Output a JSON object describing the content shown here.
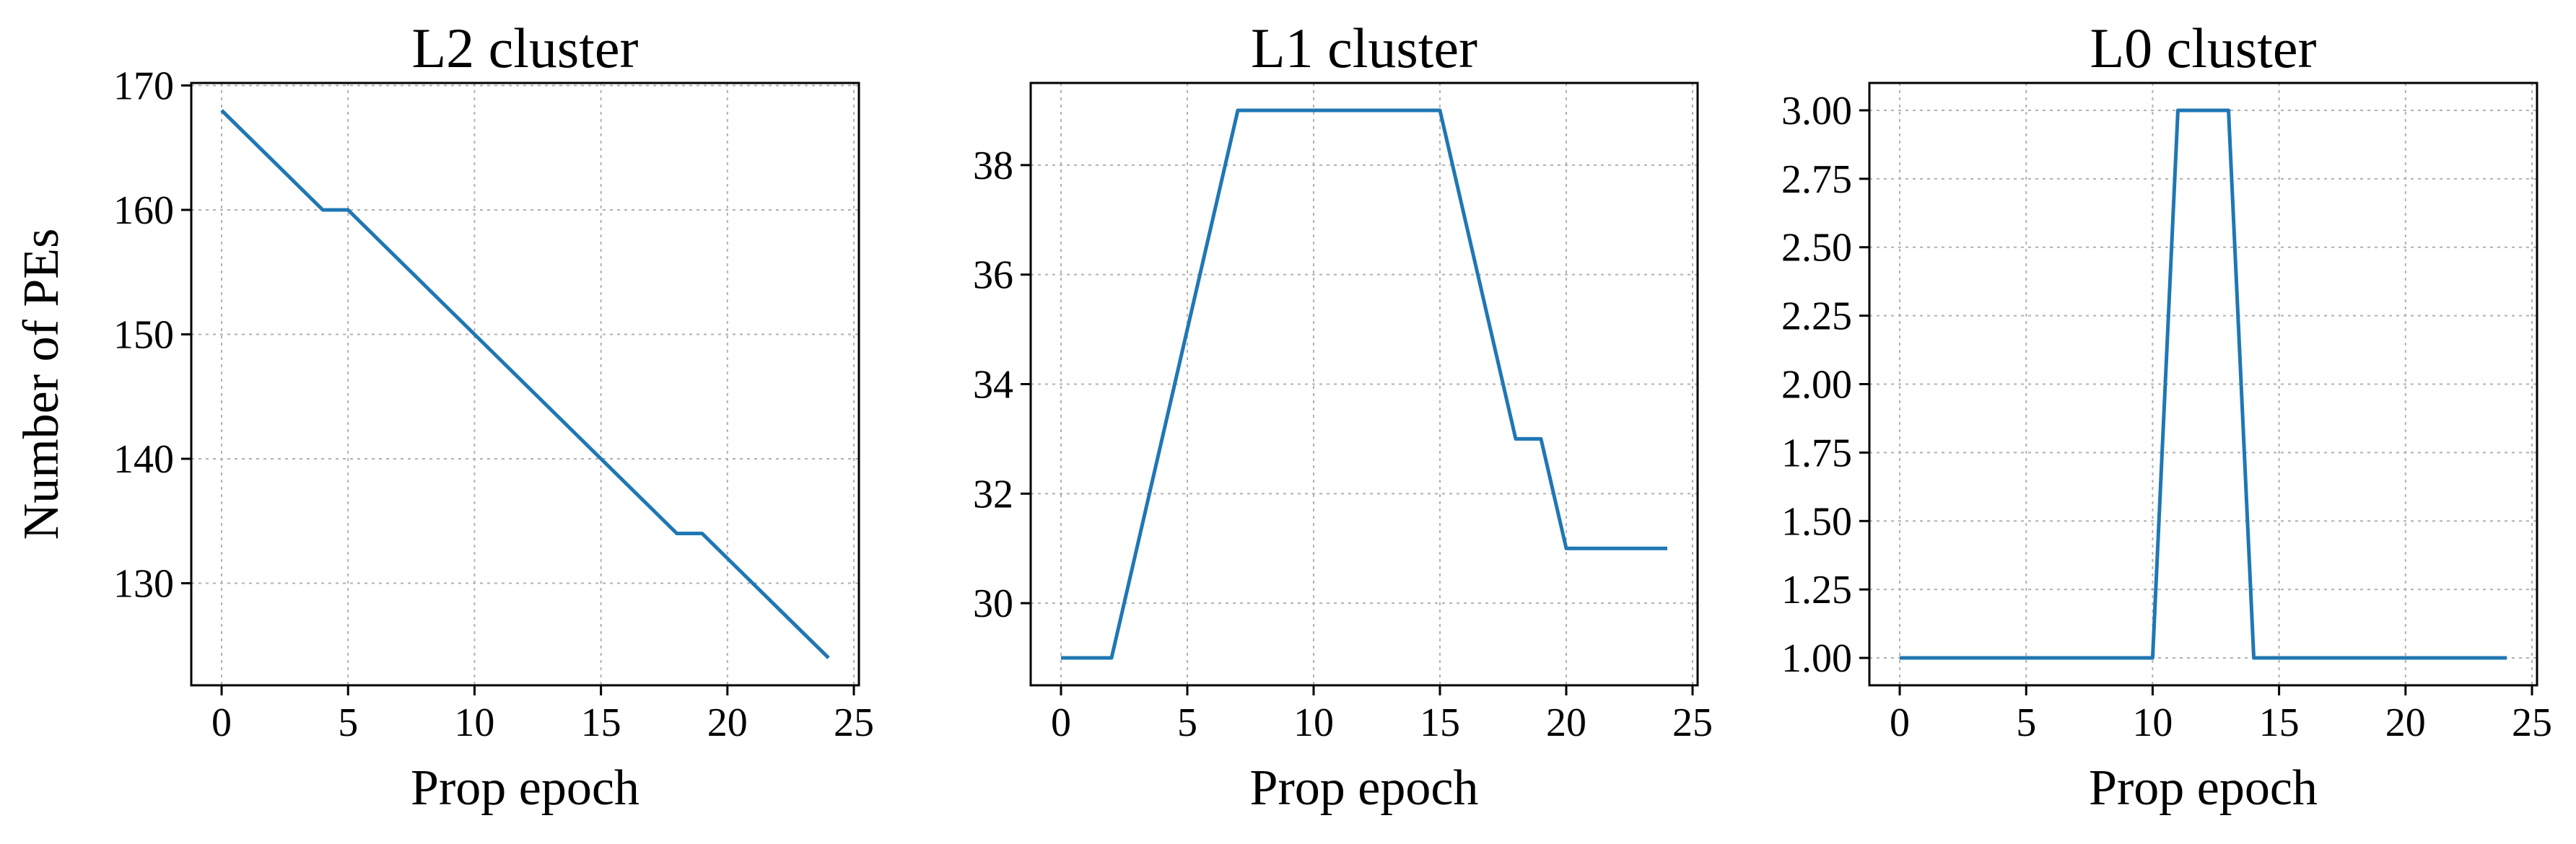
{
  "chart_data": [
    {
      "type": "line",
      "title": "L2 cluster",
      "xlabel": "Prop epoch",
      "ylabel": "Number of PEs",
      "xlim": [
        -1.2,
        25.2
      ],
      "ylim": [
        121.8,
        170.2
      ],
      "xticks": [
        0,
        5,
        10,
        15,
        20,
        25
      ],
      "yticks": [
        130,
        140,
        150,
        160,
        170
      ],
      "ytick_labels": [
        "130",
        "140",
        "150",
        "160",
        "170"
      ],
      "grid": true,
      "color": "#1f77b4",
      "x": [
        0,
        1,
        2,
        3,
        4,
        5,
        6,
        7,
        8,
        9,
        10,
        11,
        12,
        13,
        14,
        15,
        16,
        17,
        18,
        19,
        20,
        21,
        22,
        23,
        24
      ],
      "values": [
        168,
        166,
        164,
        162,
        160,
        160,
        158,
        156,
        154,
        152,
        150,
        148,
        146,
        144,
        142,
        140,
        138,
        136,
        134,
        134,
        132,
        130,
        128,
        126,
        124
      ]
    },
    {
      "type": "line",
      "title": "L1 cluster",
      "xlabel": "Prop epoch",
      "ylabel": "",
      "xlim": [
        -1.2,
        25.2
      ],
      "ylim": [
        28.5,
        39.5
      ],
      "xticks": [
        0,
        5,
        10,
        15,
        20,
        25
      ],
      "yticks": [
        30,
        32,
        34,
        36,
        38
      ],
      "ytick_labels": [
        "30",
        "32",
        "34",
        "36",
        "38"
      ],
      "grid": true,
      "color": "#1f77b4",
      "x": [
        0,
        1,
        2,
        3,
        4,
        5,
        6,
        7,
        8,
        9,
        10,
        11,
        12,
        13,
        14,
        15,
        16,
        17,
        18,
        19,
        20,
        21,
        22,
        23,
        24
      ],
      "values": [
        29,
        29,
        29,
        31,
        33,
        35,
        37,
        39,
        39,
        39,
        39,
        39,
        39,
        39,
        39,
        39,
        37,
        35,
        33,
        33,
        31,
        31,
        31,
        31,
        31
      ]
    },
    {
      "type": "line",
      "title": "L0 cluster",
      "xlabel": "Prop epoch",
      "ylabel": "",
      "xlim": [
        -1.2,
        25.2
      ],
      "ylim": [
        0.9,
        3.1
      ],
      "xticks": [
        0,
        5,
        10,
        15,
        20,
        25
      ],
      "yticks": [
        1.0,
        1.25,
        1.5,
        1.75,
        2.0,
        2.25,
        2.5,
        2.75,
        3.0
      ],
      "ytick_labels": [
        "1.00",
        "1.25",
        "1.50",
        "1.75",
        "2.00",
        "2.25",
        "2.50",
        "2.75",
        "3.00"
      ],
      "grid": true,
      "color": "#1f77b4",
      "x": [
        0,
        1,
        2,
        3,
        4,
        5,
        6,
        7,
        8,
        9,
        10,
        11,
        12,
        13,
        14,
        15,
        16,
        17,
        18,
        19,
        20,
        21,
        22,
        23,
        24
      ],
      "values": [
        1,
        1,
        1,
        1,
        1,
        1,
        1,
        1,
        1,
        1,
        1,
        3,
        3,
        3,
        1,
        1,
        1,
        1,
        1,
        1,
        1,
        1,
        1,
        1,
        1
      ]
    }
  ]
}
